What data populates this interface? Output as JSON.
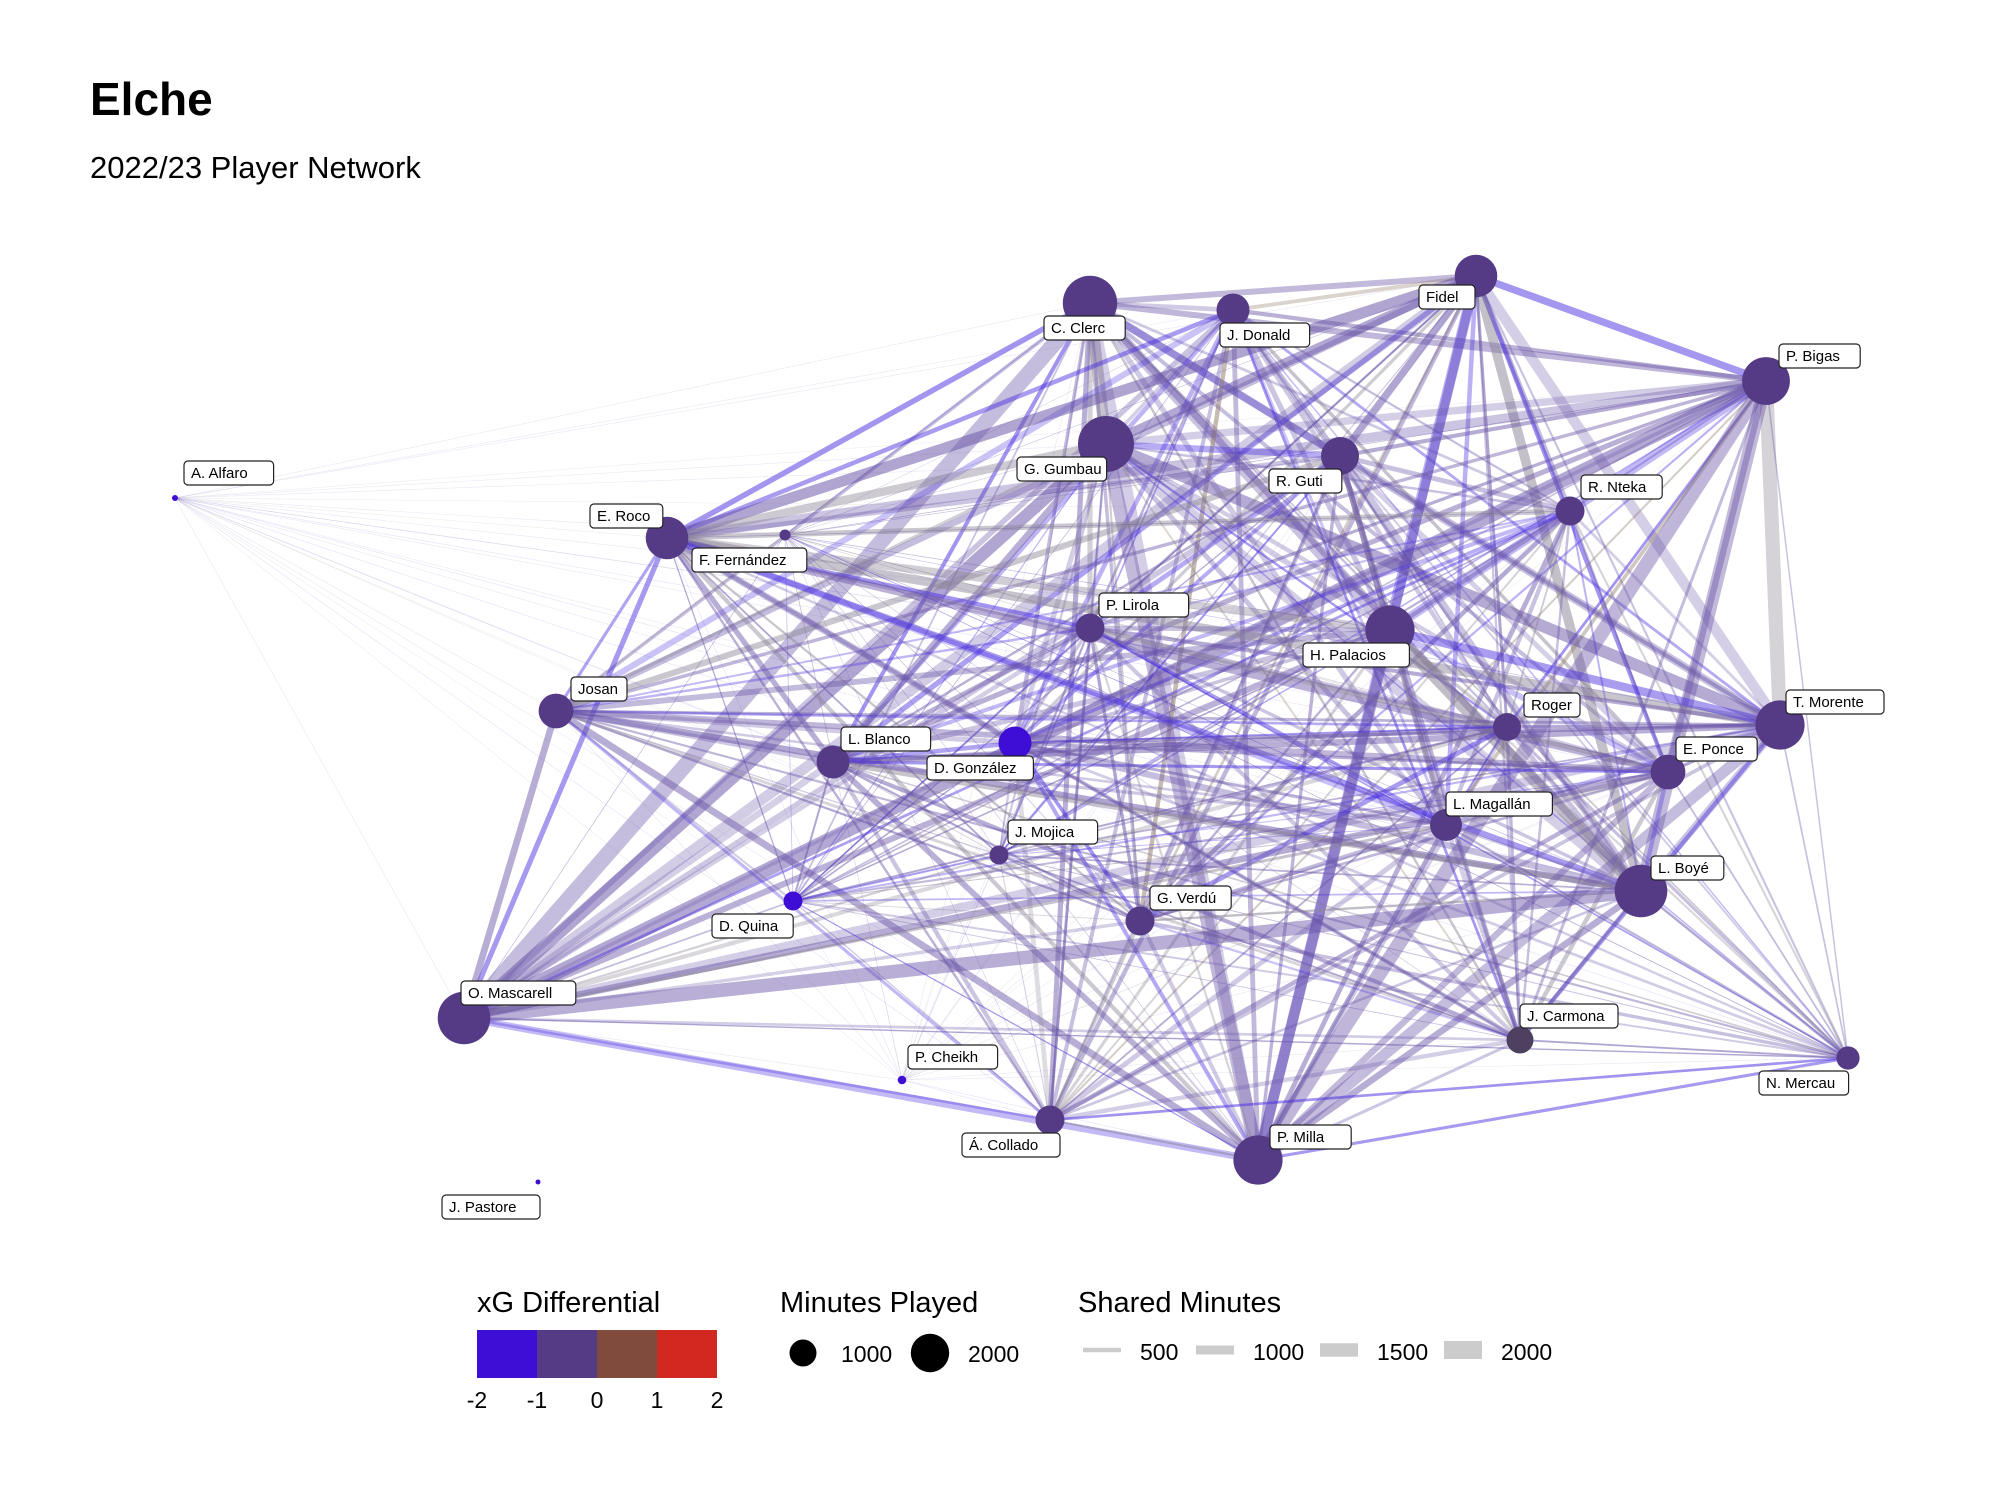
{
  "title": "Elche",
  "subtitle": "2022/23 Player Network",
  "colors": {
    "xg_scale": [
      "#3e0ed6",
      "#553b86",
      "#804a3c",
      "#d1281f"
    ],
    "node_default": "#553b86",
    "node_strong_negative": "#3e0ed6",
    "node_neutral": "#4d4060",
    "edge_purple": "#6a55a8",
    "edge_blue": "#4a2fe0",
    "edge_grey": "#8c8496",
    "edge_brown": "#8f7a6a",
    "legend_grey": "#cccccc"
  },
  "chart_data": {
    "type": "network",
    "nodes": [
      {
        "name": "C. Clerc",
        "minutes": 2450,
        "xg_diff": -0.8
      },
      {
        "name": "J. Donald",
        "minutes": 900,
        "xg_diff": -0.5
      },
      {
        "name": "Fidel",
        "minutes": 1500,
        "xg_diff": -0.8
      },
      {
        "name": "P. Bigas",
        "minutes": 1900,
        "xg_diff": -0.9
      },
      {
        "name": "G. Gumbau",
        "minutes": 2600,
        "xg_diff": -0.8
      },
      {
        "name": "R. Guti",
        "minutes": 1200,
        "xg_diff": -1.0
      },
      {
        "name": "R. Nteka",
        "minutes": 700,
        "xg_diff": -0.9
      },
      {
        "name": "A. Alfaro",
        "minutes": 30,
        "xg_diff": -1.8
      },
      {
        "name": "E. Roco",
        "minutes": 1500,
        "xg_diff": -0.9
      },
      {
        "name": "F. Fernández",
        "minutes": 100,
        "xg_diff": -0.6
      },
      {
        "name": "P. Lirola",
        "minutes": 700,
        "xg_diff": -0.9
      },
      {
        "name": "H. Palacios",
        "minutes": 2000,
        "xg_diff": -0.9
      },
      {
        "name": "Josan",
        "minutes": 1000,
        "xg_diff": -0.9
      },
      {
        "name": "T. Morente",
        "minutes": 2000,
        "xg_diff": -0.8
      },
      {
        "name": "Roger",
        "minutes": 650,
        "xg_diff": -0.6
      },
      {
        "name": "L. Blanco",
        "minutes": 900,
        "xg_diff": -0.9
      },
      {
        "name": "D. González",
        "minutes": 900,
        "xg_diff": -1.8
      },
      {
        "name": "E. Ponce",
        "minutes": 1000,
        "xg_diff": -0.8
      },
      {
        "name": "L. Magallán",
        "minutes": 850,
        "xg_diff": -0.6
      },
      {
        "name": "J. Mojica",
        "minutes": 300,
        "xg_diff": -0.8
      },
      {
        "name": "L. Boyé",
        "minutes": 2300,
        "xg_diff": -0.8
      },
      {
        "name": "D. Quina",
        "minutes": 300,
        "xg_diff": -1.7
      },
      {
        "name": "G. Verdú",
        "minutes": 700,
        "xg_diff": -0.9
      },
      {
        "name": "O. Mascarell",
        "minutes": 2300,
        "xg_diff": -0.8
      },
      {
        "name": "J. Carmona",
        "minutes": 600,
        "xg_diff": -0.4
      },
      {
        "name": "N. Mercau",
        "minutes": 450,
        "xg_diff": -1.0
      },
      {
        "name": "P. Cheikh",
        "minutes": 60,
        "xg_diff": -1.5
      },
      {
        "name": "Á. Collado",
        "minutes": 700,
        "xg_diff": -0.9
      },
      {
        "name": "P. Milla",
        "minutes": 2000,
        "xg_diff": -0.8
      },
      {
        "name": "J. Pastore",
        "minutes": 15,
        "xg_diff": -1.5
      }
    ],
    "legend": {
      "xg_title": "xG Differential",
      "xg_ticks": [
        "-2",
        "-1",
        "0",
        "1",
        "2"
      ],
      "minutes_title": "Minutes Played",
      "minutes_ticks": [
        {
          "label": "1000",
          "value": 1000
        },
        {
          "label": "2000",
          "value": 2000
        }
      ],
      "shared_title": "Shared Minutes",
      "shared_ticks": [
        {
          "label": "500",
          "value": 500
        },
        {
          "label": "1000",
          "value": 1000
        },
        {
          "label": "1500",
          "value": 1500
        },
        {
          "label": "2000",
          "value": 2000
        }
      ]
    }
  }
}
